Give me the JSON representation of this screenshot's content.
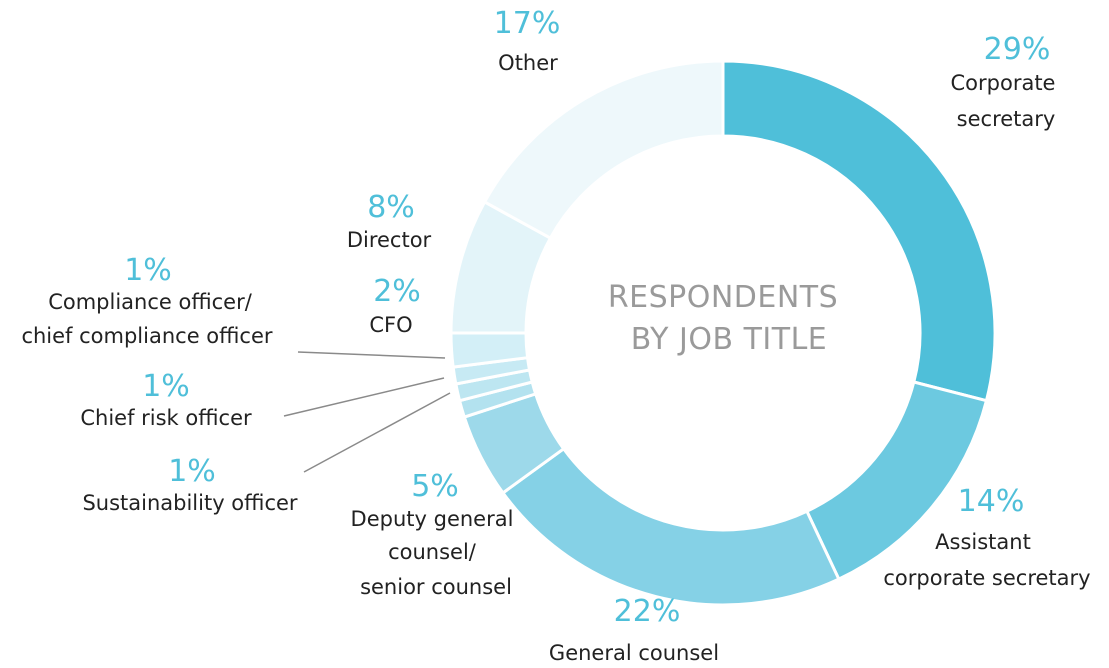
{
  "chart_data": {
    "type": "pie",
    "title": "RESPONDENTS BY JOB TITLE",
    "title_lines": [
      "RESPONDENTS",
      "BY JOB TITLE"
    ],
    "slices": [
      {
        "label": "Corporate secretary",
        "label_lines": [
          "Corporate",
          "secretary"
        ],
        "value": 29,
        "value_label": "29%",
        "color": "#4fbfd9"
      },
      {
        "label": "Assistant corporate secretary",
        "label_lines": [
          "Assistant",
          "corporate secretary"
        ],
        "value": 14,
        "value_label": "14%",
        "color": "#6cc9e0"
      },
      {
        "label": "General counsel",
        "label_lines": [
          "General counsel"
        ],
        "value": 22,
        "value_label": "22%",
        "color": "#85d1e6"
      },
      {
        "label": "Deputy general counsel/ senior counsel",
        "label_lines": [
          "Deputy general",
          "counsel/",
          "senior counsel"
        ],
        "value": 5,
        "value_label": "5%",
        "color": "#9dd9ea"
      },
      {
        "label": "Sustainability officer",
        "label_lines": [
          "Sustainability officer"
        ],
        "value": 1,
        "value_label": "1%",
        "color": "#b3e2ef"
      },
      {
        "label": "Chief risk officer",
        "label_lines": [
          "Chief risk officer"
        ],
        "value": 1,
        "value_label": "1%",
        "color": "#bde6f1"
      },
      {
        "label": "Compliance officer/ chief compliance officer",
        "label_lines": [
          "Compliance officer/",
          "chief compliance officer"
        ],
        "value": 1,
        "value_label": "1%",
        "color": "#c7eaf4"
      },
      {
        "label": "CFO",
        "label_lines": [
          "CFO"
        ],
        "value": 2,
        "value_label": "2%",
        "color": "#d3eff7"
      },
      {
        "label": "Director",
        "label_lines": [
          "Director"
        ],
        "value": 8,
        "value_label": "8%",
        "color": "#e3f4f9"
      },
      {
        "label": "Other",
        "label_lines": [
          "Other"
        ],
        "value": 17,
        "value_label": "17%",
        "color": "#eef8fb"
      }
    ]
  }
}
